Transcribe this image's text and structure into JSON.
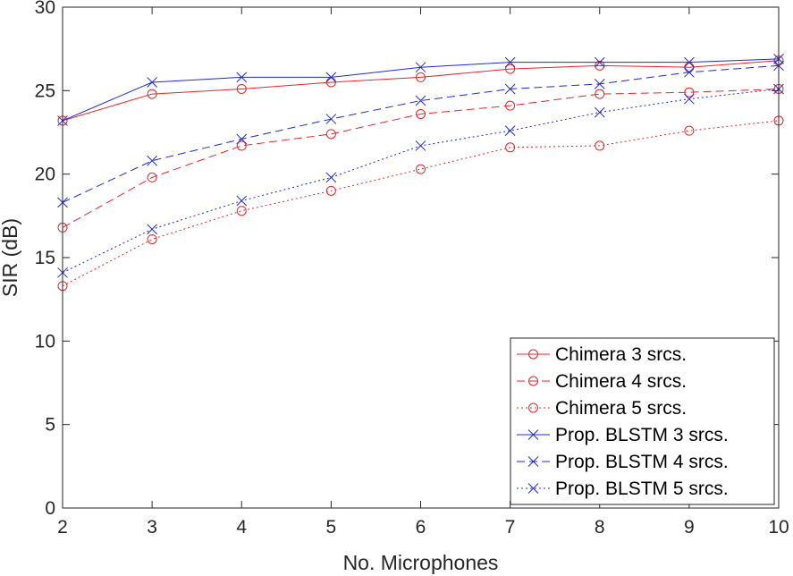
{
  "chart_data": {
    "type": "line",
    "title": "",
    "xlabel": "No. Microphones",
    "ylabel": "SIR (dB)",
    "xlim": [
      2,
      10
    ],
    "ylim": [
      0,
      30
    ],
    "xticks": [
      2,
      3,
      4,
      5,
      6,
      7,
      8,
      9,
      10
    ],
    "yticks": [
      0,
      5,
      10,
      15,
      20,
      25,
      30
    ],
    "grid": false,
    "legend_location": "bottom-right",
    "x": [
      2,
      3,
      4,
      5,
      6,
      7,
      8,
      9,
      10
    ],
    "series": [
      {
        "name": "Chimera 3 srcs.",
        "color": "#e8262a",
        "linestyle": "solid",
        "marker": "circle",
        "values": [
          23.2,
          24.8,
          25.1,
          25.5,
          25.8,
          26.3,
          26.5,
          26.4,
          26.8
        ]
      },
      {
        "name": "Chimera 4 srcs.",
        "color": "#e8262a",
        "linestyle": "dashed",
        "marker": "circle",
        "values": [
          16.8,
          19.8,
          21.7,
          22.4,
          23.6,
          24.1,
          24.8,
          24.9,
          25.1
        ]
      },
      {
        "name": "Chimera 5 srcs.",
        "color": "#e8262a",
        "linestyle": "dotted",
        "marker": "circle",
        "values": [
          13.3,
          16.1,
          17.8,
          19.0,
          20.3,
          21.6,
          21.7,
          22.6,
          23.2
        ]
      },
      {
        "name": "Prop. BLSTM 3 srcs.",
        "color": "#1f2ad8",
        "linestyle": "solid",
        "marker": "x",
        "values": [
          23.2,
          25.5,
          25.8,
          25.8,
          26.4,
          26.7,
          26.7,
          26.7,
          26.9
        ]
      },
      {
        "name": "Prop. BLSTM 4 srcs.",
        "color": "#1f2ad8",
        "linestyle": "dashed",
        "marker": "x",
        "values": [
          18.3,
          20.8,
          22.1,
          23.3,
          24.4,
          25.1,
          25.4,
          26.1,
          26.5
        ]
      },
      {
        "name": "Prop. BLSTM 5 srcs.",
        "color": "#1f2ad8",
        "linestyle": "dotted",
        "marker": "x",
        "values": [
          14.1,
          16.7,
          18.4,
          19.8,
          21.7,
          22.6,
          23.7,
          24.5,
          25.1
        ]
      }
    ]
  }
}
